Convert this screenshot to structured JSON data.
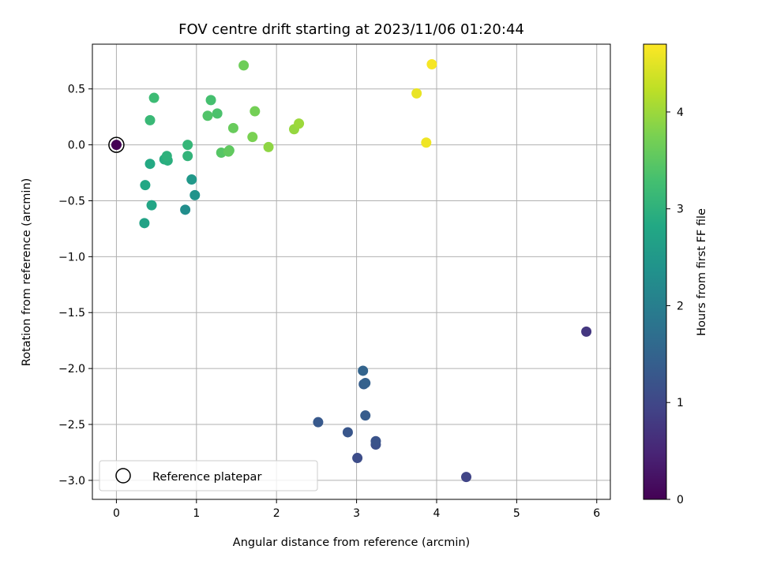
{
  "chart_data": {
    "type": "scatter",
    "title": "FOV centre drift starting at 2023/11/06 01:20:44",
    "xlabel": "Angular distance from reference (arcmin)",
    "ylabel": "Rotation from reference (arcmin)",
    "xlim": [
      -0.3,
      6.17
    ],
    "ylim": [
      -3.17,
      0.9
    ],
    "xticks": [
      0,
      1,
      2,
      3,
      4,
      5,
      6
    ],
    "xtick_labels": [
      "0",
      "1",
      "2",
      "3",
      "4",
      "5",
      "6"
    ],
    "yticks": [
      0.5,
      0.0,
      -0.5,
      -1.0,
      -1.5,
      -2.0,
      -2.5,
      -3.0
    ],
    "ytick_labels": [
      "0.5",
      "0.0",
      "−0.5",
      "−1.0",
      "−1.5",
      "−2.0",
      "−2.5",
      "−3.0"
    ],
    "grid": true,
    "legend": {
      "position": "lower-left",
      "entries": [
        "Reference platepar"
      ]
    },
    "reference_point": {
      "x": 0,
      "y": 0
    },
    "colorbar": {
      "label": "Hours from first FF file",
      "colormap": "viridis",
      "range": [
        0,
        4.7
      ],
      "ticks": [
        0,
        1,
        2,
        3,
        4
      ],
      "tick_labels": [
        "0",
        "1",
        "2",
        "3",
        "4"
      ]
    },
    "points": [
      {
        "x": 0.0,
        "y": 0.0,
        "hours": 0.0
      },
      {
        "x": 5.87,
        "y": -1.67,
        "hours": 0.75
      },
      {
        "x": 4.37,
        "y": -2.97,
        "hours": 0.95
      },
      {
        "x": 3.01,
        "y": -2.8,
        "hours": 1.1
      },
      {
        "x": 3.24,
        "y": -2.68,
        "hours": 1.15
      },
      {
        "x": 3.24,
        "y": -2.65,
        "hours": 1.2
      },
      {
        "x": 2.89,
        "y": -2.57,
        "hours": 1.25
      },
      {
        "x": 2.52,
        "y": -2.48,
        "hours": 1.3
      },
      {
        "x": 3.11,
        "y": -2.42,
        "hours": 1.35
      },
      {
        "x": 3.09,
        "y": -2.14,
        "hours": 1.4
      },
      {
        "x": 3.11,
        "y": -2.13,
        "hours": 1.45
      },
      {
        "x": 3.08,
        "y": -2.02,
        "hours": 1.5
      },
      {
        "x": 0.86,
        "y": -0.58,
        "hours": 2.3
      },
      {
        "x": 0.98,
        "y": -0.45,
        "hours": 2.4
      },
      {
        "x": 0.94,
        "y": -0.31,
        "hours": 2.5
      },
      {
        "x": 0.35,
        "y": -0.7,
        "hours": 2.7
      },
      {
        "x": 0.44,
        "y": -0.54,
        "hours": 2.75
      },
      {
        "x": 0.36,
        "y": -0.36,
        "hours": 2.8
      },
      {
        "x": 0.42,
        "y": -0.17,
        "hours": 2.85
      },
      {
        "x": 0.6,
        "y": -0.13,
        "hours": 2.9
      },
      {
        "x": 0.64,
        "y": -0.14,
        "hours": 2.95
      },
      {
        "x": 0.63,
        "y": -0.1,
        "hours": 3.0
      },
      {
        "x": 0.89,
        "y": -0.1,
        "hours": 3.05
      },
      {
        "x": 0.89,
        "y": 0.0,
        "hours": 3.1
      },
      {
        "x": 0.42,
        "y": 0.22,
        "hours": 3.15
      },
      {
        "x": 0.47,
        "y": 0.42,
        "hours": 3.2
      },
      {
        "x": 1.18,
        "y": 0.4,
        "hours": 3.3
      },
      {
        "x": 1.26,
        "y": 0.28,
        "hours": 3.35
      },
      {
        "x": 1.14,
        "y": 0.26,
        "hours": 3.4
      },
      {
        "x": 1.31,
        "y": -0.07,
        "hours": 3.45
      },
      {
        "x": 1.41,
        "y": -0.05,
        "hours": 3.5
      },
      {
        "x": 1.4,
        "y": -0.06,
        "hours": 3.55
      },
      {
        "x": 1.46,
        "y": 0.15,
        "hours": 3.6
      },
      {
        "x": 1.59,
        "y": 0.71,
        "hours": 3.65
      },
      {
        "x": 1.73,
        "y": 0.3,
        "hours": 3.7
      },
      {
        "x": 1.7,
        "y": 0.07,
        "hours": 3.75
      },
      {
        "x": 1.9,
        "y": -0.02,
        "hours": 3.9
      },
      {
        "x": 2.22,
        "y": 0.14,
        "hours": 3.95
      },
      {
        "x": 2.28,
        "y": 0.19,
        "hours": 4.0
      },
      {
        "x": 3.75,
        "y": 0.46,
        "hours": 4.55
      },
      {
        "x": 3.87,
        "y": 0.02,
        "hours": 4.6
      },
      {
        "x": 3.94,
        "y": 0.72,
        "hours": 4.65
      }
    ]
  }
}
